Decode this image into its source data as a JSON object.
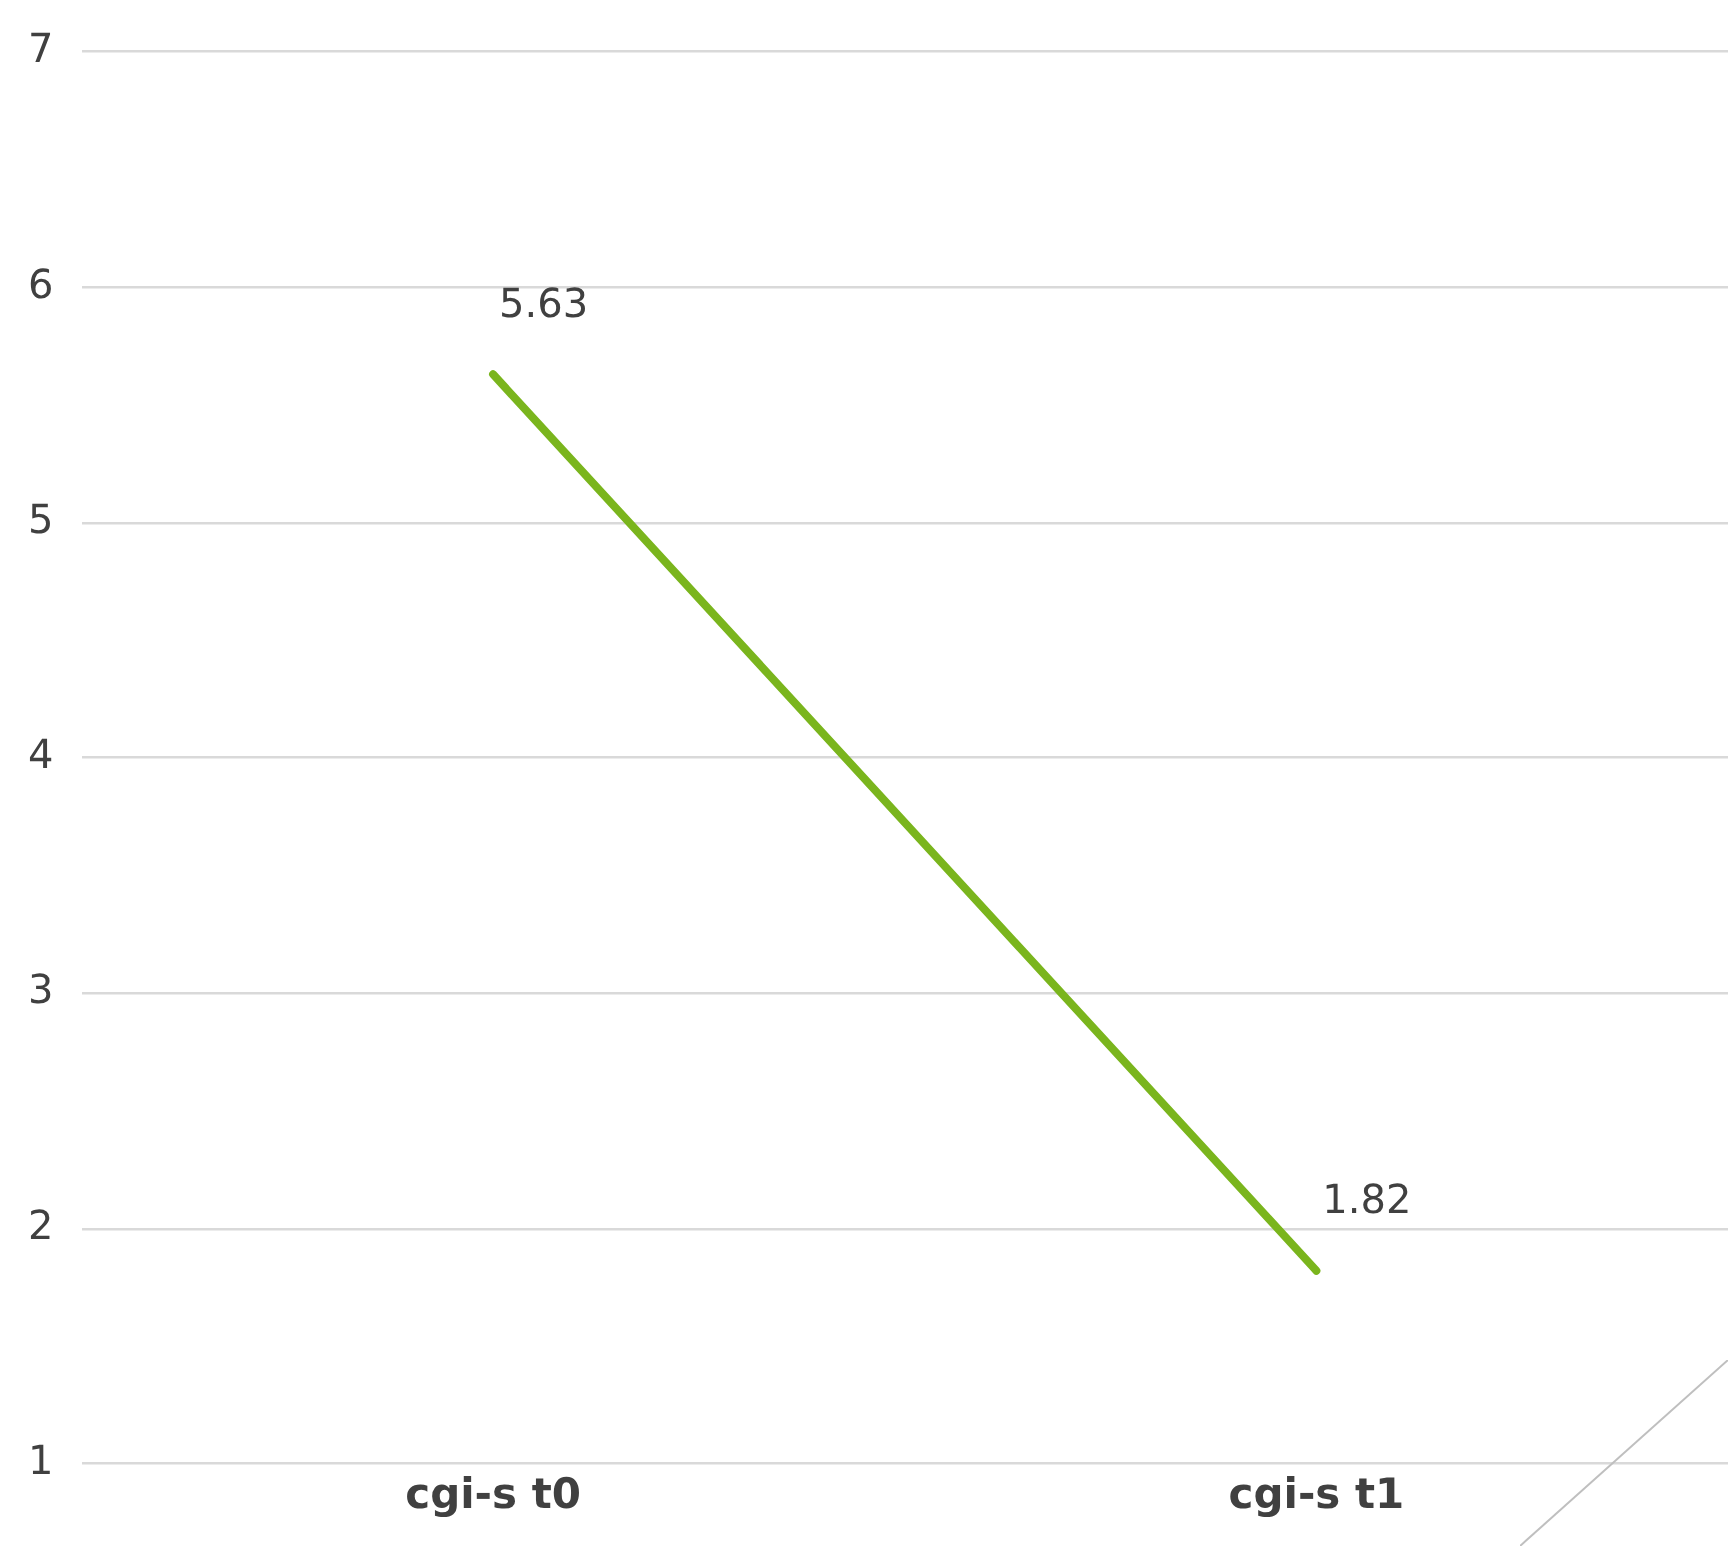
{
  "chart_data": {
    "type": "line",
    "categories": [
      "cgi-s t0",
      "cgi-s t1"
    ],
    "series": [
      {
        "color": "#7ab51d",
        "values": [
          5.63,
          1.82
        ]
      }
    ],
    "ylim": [
      1,
      7
    ],
    "yticks": [
      1,
      2,
      3,
      4,
      5,
      6,
      7
    ],
    "grid": "y",
    "legend": false,
    "marker": "none",
    "line_style": "solid",
    "data_labels": true
  }
}
